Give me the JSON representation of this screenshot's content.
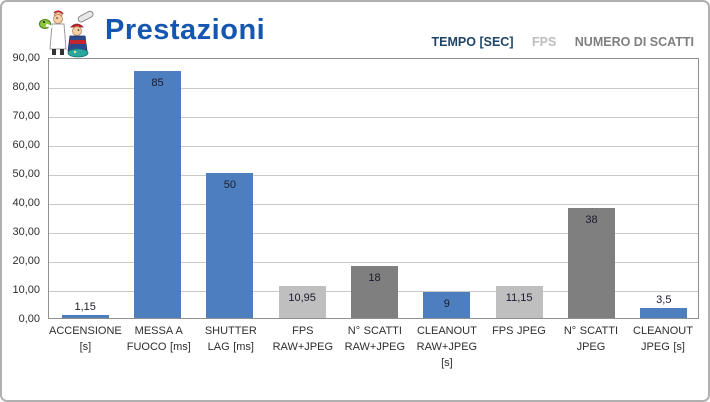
{
  "header": {
    "title": "Prestazioni",
    "title_color": "#1556b0",
    "logo_alt": "mascots-logo"
  },
  "legend": {
    "items": [
      {
        "label": "TEMPO [SEC]",
        "color": "#1f4467",
        "series": "tempo"
      },
      {
        "label": "FPS",
        "color": "#bdbdbd",
        "series": "fps"
      },
      {
        "label": "NUMERO DI SCATTI",
        "color": "#7f7f7f",
        "series": "scatti"
      }
    ]
  },
  "chart_data": {
    "type": "bar",
    "title": "Prestazioni",
    "xlabel": "",
    "ylabel": "",
    "ylim": [
      0,
      90
    ],
    "ytick_step": 10,
    "yticks": [
      "90,00",
      "80,00",
      "70,00",
      "60,00",
      "50,00",
      "40,00",
      "30,00",
      "20,00",
      "10,00",
      "0,00"
    ],
    "grid": true,
    "legend_position": "top-right",
    "decimal_separator": ",",
    "series_colors": {
      "tempo": "#4d7fbe",
      "fps": "#bfbfbf",
      "scatti": "#7f7f7f"
    },
    "categories": [
      "ACCENSIONE [s]",
      "MESSA A FUOCO [ms]",
      "SHUTTER LAG [ms]",
      "FPS RAW+JPEG",
      "N° SCATTI RAW+JPEG",
      "CLEANOUT RAW+JPEG [s]",
      "FPS JPEG",
      "N° SCATTI JPEG",
      "CLEANOUT JPEG [s]"
    ],
    "points": [
      {
        "category": "ACCENSIONE [s]",
        "value": 1.15,
        "display": "1,15",
        "series": "tempo"
      },
      {
        "category": "MESSA A FUOCO [ms]",
        "value": 85,
        "display": "85",
        "series": "tempo"
      },
      {
        "category": "SHUTTER LAG [ms]",
        "value": 50,
        "display": "50",
        "series": "tempo"
      },
      {
        "category": "FPS RAW+JPEG",
        "value": 10.95,
        "display": "10,95",
        "series": "fps"
      },
      {
        "category": "N° SCATTI RAW+JPEG",
        "value": 18,
        "display": "18",
        "series": "scatti"
      },
      {
        "category": "CLEANOUT RAW+JPEG [s]",
        "value": 9,
        "display": "9",
        "series": "tempo"
      },
      {
        "category": "FPS JPEG",
        "value": 11.15,
        "display": "11,15",
        "series": "fps"
      },
      {
        "category": "N° SCATTI JPEG",
        "value": 38,
        "display": "38",
        "series": "scatti"
      },
      {
        "category": "CLEANOUT JPEG [s]",
        "value": 3.5,
        "display": "3,5",
        "series": "tempo"
      }
    ]
  }
}
